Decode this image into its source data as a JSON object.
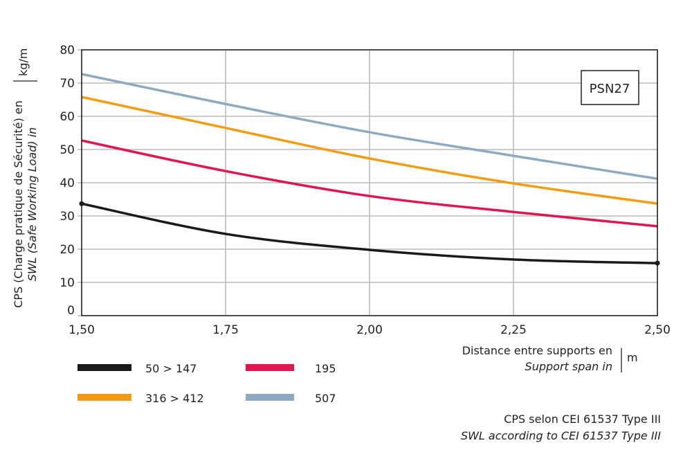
{
  "chart_data": {
    "type": "line",
    "x": [
      1.5,
      1.75,
      2.0,
      2.25,
      2.5
    ],
    "x_tick_labels": [
      "1,50",
      "1,75",
      "2,00",
      "2,25",
      "2,50"
    ],
    "y_tick_labels": [
      "0",
      "10",
      "20",
      "30",
      "40",
      "50",
      "60",
      "70",
      "80"
    ],
    "xlim": [
      1.5,
      2.5
    ],
    "ylim": [
      0,
      80
    ],
    "grid": true,
    "legend_position": "bottom-left",
    "ylabel": {
      "line1": "CPS (Charge pratique de Sécurité) en",
      "line2": "SWL (Safe Working Load) in",
      "unit": "kg/m"
    },
    "xlabel": {
      "line1": "Distance entre supports en",
      "line2": "Support span in",
      "unit": "m"
    },
    "annotation": "PSN27",
    "footnote": {
      "line1": "CPS selon CEI 61537 Type III",
      "line2": "SWL according to CEI 61537 Type III"
    },
    "series": [
      {
        "name": "50 > 147",
        "color": "#1a1a1a",
        "values": [
          33.7,
          24.6,
          19.8,
          16.9,
          15.8
        ]
      },
      {
        "name": "195",
        "color": "#e0164f",
        "values": [
          52.7,
          43.5,
          36.0,
          31.2,
          26.9
        ]
      },
      {
        "name": "316 > 412",
        "color": "#f39c12",
        "values": [
          65.8,
          56.5,
          47.3,
          39.8,
          33.7
        ]
      },
      {
        "name": "507",
        "color": "#8fa9c2",
        "values": [
          72.7,
          63.7,
          55.2,
          48.1,
          41.2
        ]
      }
    ]
  }
}
